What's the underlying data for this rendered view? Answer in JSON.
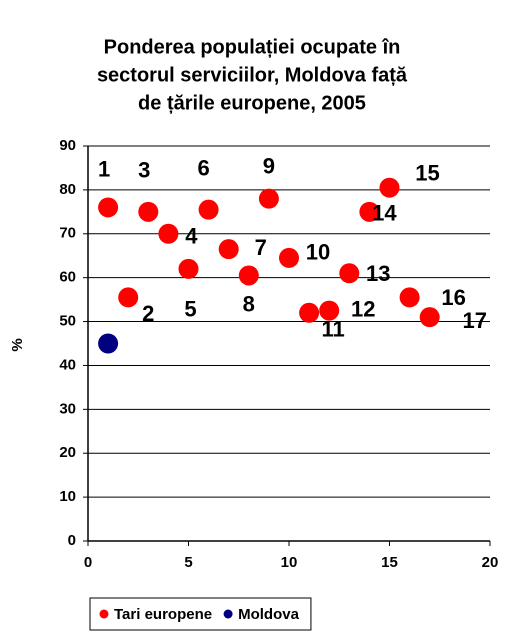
{
  "chart_data": {
    "type": "scatter",
    "title": [
      "Ponderea populației ocupate în",
      "sectorul serviciilor, Moldova față",
      "de țările europene, 2005"
    ],
    "y_label": "%",
    "xlim": [
      0,
      20
    ],
    "xticks": [
      0,
      5,
      10,
      15,
      20
    ],
    "ylim": [
      0,
      90
    ],
    "yticks": [
      0,
      10,
      20,
      30,
      40,
      50,
      60,
      70,
      80,
      90
    ],
    "grid": true,
    "legend": "bottom",
    "series": [
      {
        "name": "Tari europene",
        "color": "#ff0000",
        "x": [
          1,
          2,
          3,
          4,
          5,
          6,
          7,
          8,
          9,
          10,
          11,
          12,
          13,
          14,
          15,
          16,
          17
        ],
        "values": [
          76,
          55.5,
          75,
          70,
          62,
          75.5,
          66.5,
          60.5,
          78,
          64.5,
          52,
          52.5,
          61,
          75,
          80.5,
          55.5,
          51
        ],
        "labels": [
          "1",
          "2",
          "3",
          "4",
          "5",
          "6",
          "7",
          "8",
          "9",
          "10",
          "11",
          "12",
          "13",
          "14",
          "15",
          "16",
          "17"
        ]
      },
      {
        "name": "Moldova",
        "color": "#000080",
        "x": [
          1
        ],
        "values": [
          45
        ]
      }
    ]
  }
}
